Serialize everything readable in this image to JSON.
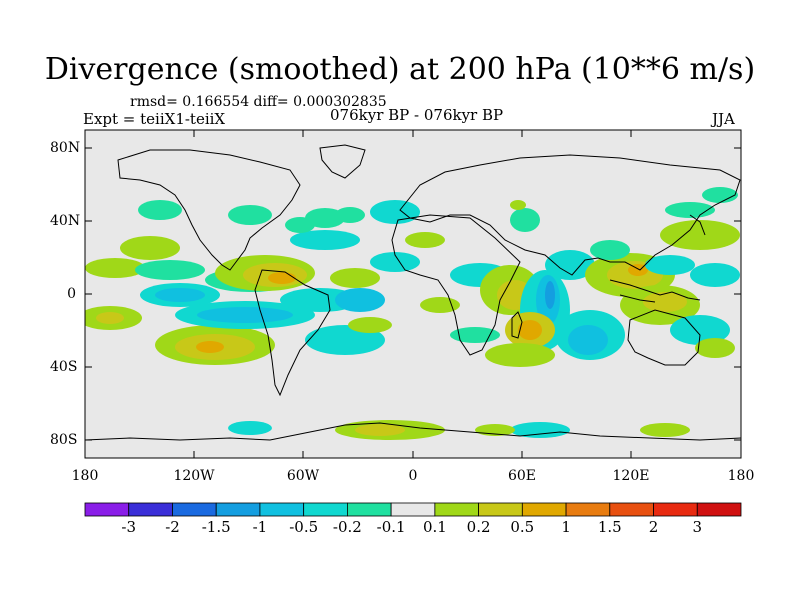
{
  "title": "Divergence (smoothed) at 200 hPa (10**6 m/s)",
  "stats": "rmsd= 0.166554 diff= 0.000302835",
  "experiment": "Expt = teiiX1-teiiX",
  "period": "076kyr BP - 076kyr BP",
  "season": "JJA",
  "map": {
    "projection": "cylindrical equidistant",
    "lon_range": [
      -180,
      180
    ],
    "lat_range": [
      -90,
      90
    ],
    "lat_ticks": [
      "80N",
      "40N",
      "0",
      "40S",
      "80S"
    ],
    "lon_ticks": [
      "180",
      "120W",
      "60W",
      "0",
      "60E",
      "120E",
      "180"
    ],
    "background_color": "#e8e8e8"
  },
  "colorbar": {
    "labels": [
      "-3",
      "-2",
      "-1.5",
      "-1",
      "-0.5",
      "-0.2",
      "-0.1",
      "0.1",
      "0.2",
      "0.5",
      "1",
      "1.5",
      "2",
      "3"
    ],
    "colors": [
      "#8a1ee8",
      "#3a2ed8",
      "#1a6ae0",
      "#149ee0",
      "#10c0e0",
      "#10d8d0",
      "#20e0a0",
      "#e8e8e8",
      "#a0d818",
      "#c8c818",
      "#e0a800",
      "#e87c10",
      "#e85010",
      "#e82a10",
      "#d01010"
    ]
  }
}
